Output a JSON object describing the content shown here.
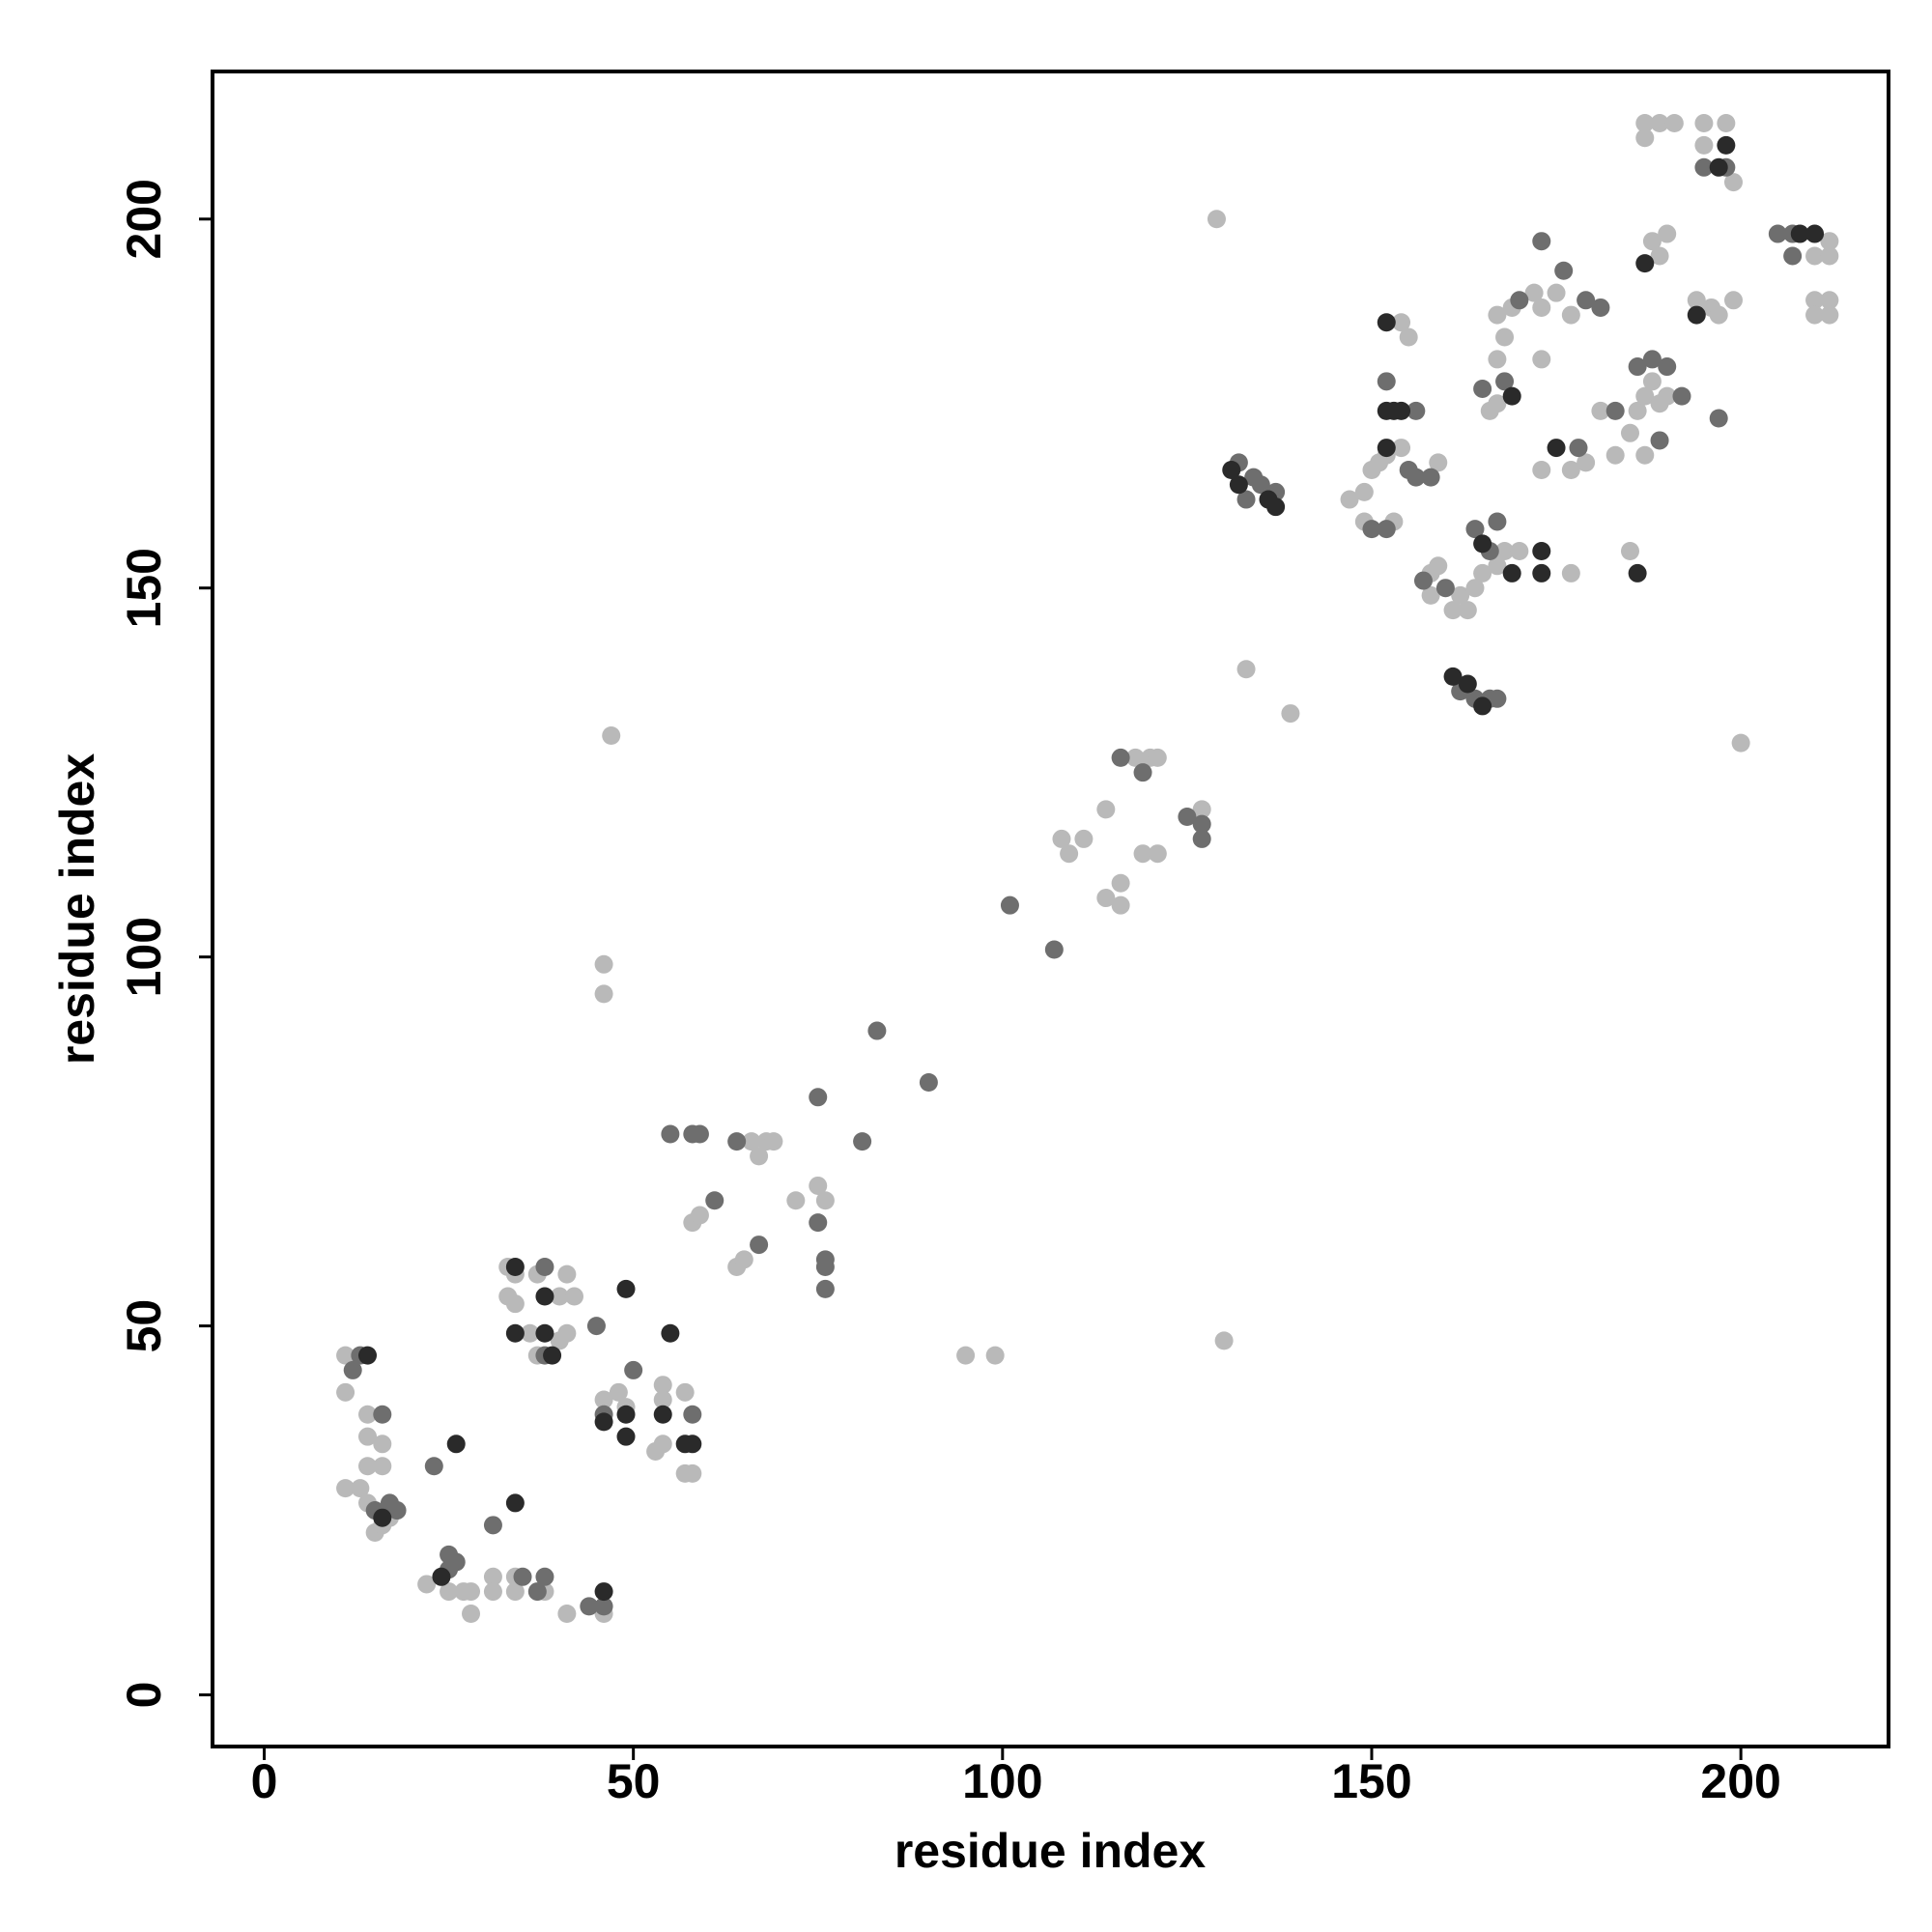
{
  "chart_data": {
    "type": "scatter",
    "xlabel": "residue index",
    "ylabel": "residue index",
    "xlim": [
      -7,
      220
    ],
    "ylim": [
      -7,
      220
    ],
    "xticks": [
      0,
      50,
      100,
      150,
      200
    ],
    "yticks": [
      0,
      50,
      100,
      150,
      200
    ],
    "grid": false,
    "series": [
      {
        "color": "#b9b9b9",
        "x": [
          11,
          11,
          14,
          14,
          16,
          14,
          16,
          11,
          13,
          14,
          15,
          16,
          17,
          22,
          24,
          25,
          27,
          28,
          28,
          31,
          31,
          34,
          34,
          38,
          41,
          46,
          33,
          34,
          37,
          41,
          33,
          34,
          40,
          42,
          36,
          40,
          41,
          37,
          46,
          48,
          49,
          54,
          54,
          53,
          54,
          57,
          57,
          58,
          58,
          59,
          66,
          67,
          68,
          69,
          64,
          65,
          72,
          75,
          76,
          47,
          46,
          46,
          95,
          99,
          130,
          129,
          133,
          139,
          200,
          108,
          109,
          111,
          114,
          116,
          116,
          114,
          118,
          120,
          121,
          119,
          121,
          127,
          147,
          149,
          150,
          151,
          149,
          153,
          152,
          154,
          154,
          155,
          159,
          158,
          158,
          161,
          162,
          163,
          164,
          159,
          165,
          167,
          168,
          170,
          177,
          166,
          167,
          167,
          168,
          167,
          169,
          172,
          173,
          175,
          177,
          173,
          177,
          179,
          181,
          173,
          185,
          183,
          185,
          186,
          187,
          188,
          189,
          190,
          187,
          188,
          190,
          189,
          187,
          189,
          191,
          187,
          195,
          195,
          198,
          199,
          196,
          194,
          199,
          197,
          210,
          212,
          212,
          210,
          212,
          212,
          210
        ],
        "values": [
          46,
          41,
          38,
          35,
          34,
          31,
          31,
          28,
          28,
          26,
          22,
          23,
          24,
          15,
          16,
          14,
          14,
          11,
          14,
          16,
          14,
          16,
          14,
          14,
          11,
          11,
          58,
          57,
          57,
          57,
          54,
          53,
          54,
          54,
          49,
          48,
          49,
          46,
          40,
          41,
          39,
          42,
          40,
          33,
          34,
          41,
          30,
          30,
          64,
          65,
          75,
          73,
          75,
          75,
          58,
          59,
          67,
          69,
          67,
          130,
          99,
          95,
          46,
          46,
          48,
          200,
          139,
          133,
          129,
          116,
          114,
          116,
          108,
          110,
          107,
          120,
          127,
          127,
          127,
          114,
          114,
          120,
          162,
          163,
          166,
          167,
          159,
          159,
          168,
          169,
          186,
          184,
          167,
          152,
          149,
          147,
          149,
          147,
          150,
          153,
          152,
          153,
          155,
          155,
          152,
          174,
          175,
          181,
          184,
          187,
          188,
          190,
          188,
          190,
          187,
          181,
          166,
          167,
          174,
          166,
          155,
          168,
          171,
          174,
          176,
          178,
          175,
          176,
          168,
          197,
          198,
          195,
          213,
          213,
          213,
          211,
          213,
          210,
          213,
          205,
          188,
          189,
          189,
          187,
          195,
          195,
          197,
          189,
          189,
          187,
          187
        ]
      },
      {
        "color": "#6e6e6e",
        "x": [
          13,
          12,
          16,
          15,
          17,
          18,
          23,
          31,
          25,
          25,
          26,
          35,
          37,
          38,
          44,
          46,
          38,
          38,
          45,
          46,
          50,
          58,
          55,
          58,
          59,
          61,
          64,
          67,
          75,
          75,
          76,
          76,
          76,
          81,
          83,
          90,
          101,
          107,
          116,
          119,
          125,
          127,
          127,
          132,
          134,
          135,
          133,
          137,
          150,
          152,
          152,
          156,
          155,
          156,
          158,
          157,
          160,
          162,
          164,
          166,
          167,
          164,
          166,
          167,
          165,
          168,
          170,
          176,
          179,
          181,
          173,
          178,
          186,
          188,
          190,
          192,
          189,
          183,
          195,
          198,
          197,
          205,
          207,
          207
        ],
        "values": [
          46,
          44,
          38,
          25,
          26,
          25,
          31,
          23,
          17,
          19,
          18,
          16,
          14,
          16,
          12,
          12,
          58,
          46,
          50,
          38,
          44,
          38,
          76,
          76,
          76,
          67,
          75,
          61,
          81,
          64,
          59,
          58,
          55,
          75,
          90,
          83,
          107,
          101,
          127,
          125,
          119,
          118,
          116,
          167,
          165,
          164,
          162,
          163,
          158,
          158,
          178,
          174,
          166,
          165,
          165,
          151,
          150,
          136,
          135,
          135,
          135,
          158,
          155,
          159,
          177,
          178,
          189,
          193,
          189,
          188,
          197,
          169,
          180,
          181,
          180,
          176,
          170,
          174,
          207,
          207,
          173,
          198,
          198,
          195
        ]
      },
      {
        "color": "#2a2a2a",
        "x": [
          14,
          16,
          26,
          34,
          24,
          46,
          34,
          38,
          34,
          38,
          39,
          46,
          49,
          49,
          49,
          55,
          54,
          57,
          58,
          131,
          132,
          136,
          137,
          153,
          154,
          152,
          152,
          152,
          161,
          163,
          165,
          165,
          169,
          173,
          173,
          169,
          175,
          186,
          187,
          198,
          197,
          194,
          208,
          210
        ],
        "values": [
          46,
          24,
          34,
          26,
          16,
          14,
          58,
          54,
          49,
          49,
          46,
          37,
          38,
          35,
          55,
          49,
          38,
          34,
          34,
          166,
          164,
          162,
          161,
          174,
          174,
          174,
          186,
          169,
          138,
          137,
          134,
          156,
          152,
          155,
          152,
          176,
          169,
          152,
          194,
          210,
          207,
          187,
          198,
          198
        ]
      }
    ]
  }
}
